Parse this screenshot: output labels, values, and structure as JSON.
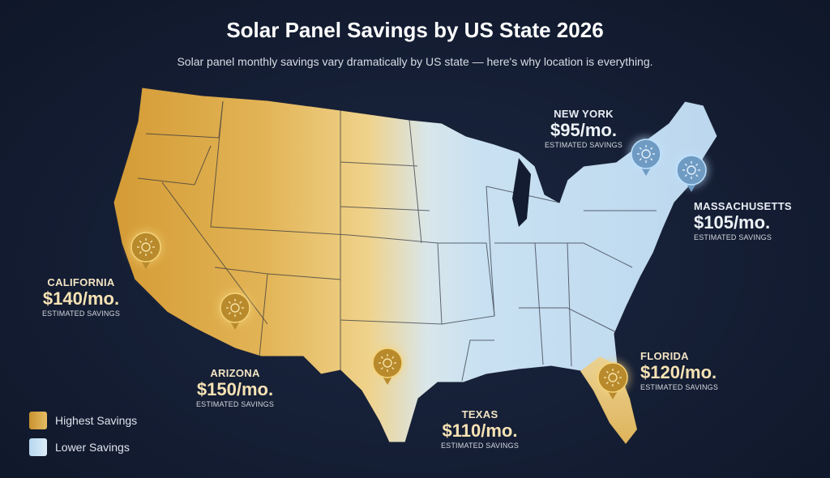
{
  "title": "Solar Panel Savings by US State 2026",
  "subtitle": "Solar panel monthly savings vary dramatically by US state — here's why location is everything.",
  "colors": {
    "background": "#131c31",
    "high": "#d9a640",
    "low": "#c9e1f2",
    "pin_gold": "#b88a2c",
    "pin_blue": "#6f9bc3"
  },
  "states": [
    {
      "name": "CALIFORNIA",
      "value": "$140/mo.",
      "note": "ESTIMATED SAVINGS",
      "tier": "high",
      "icon": "sun-icon"
    },
    {
      "name": "ARIZONA",
      "value": "$150/mo.",
      "note": "ESTIMATED SAVINGS",
      "tier": "high",
      "icon": "sun-icon"
    },
    {
      "name": "TEXAS",
      "value": "$110/mo.",
      "note": "ESTIMATED SAVINGS",
      "tier": "high",
      "icon": "sun-icon"
    },
    {
      "name": "FLORIDA",
      "value": "$120/mo.",
      "note": "ESTIMATED SAVINGS",
      "tier": "high",
      "icon": "sun-icon"
    },
    {
      "name": "NEW YORK",
      "value": "$95/mo.",
      "note": "ESTIMATED SAVINGS",
      "tier": "low",
      "icon": "sun-icon"
    },
    {
      "name": "MASSACHUSETTS",
      "value": "$105/mo.",
      "note": "ESTIMATED SAVINGS",
      "tier": "low",
      "icon": "sun-icon"
    }
  ],
  "legend": [
    {
      "label": "Highest Savings"
    },
    {
      "label": "Lower Savings"
    }
  ]
}
